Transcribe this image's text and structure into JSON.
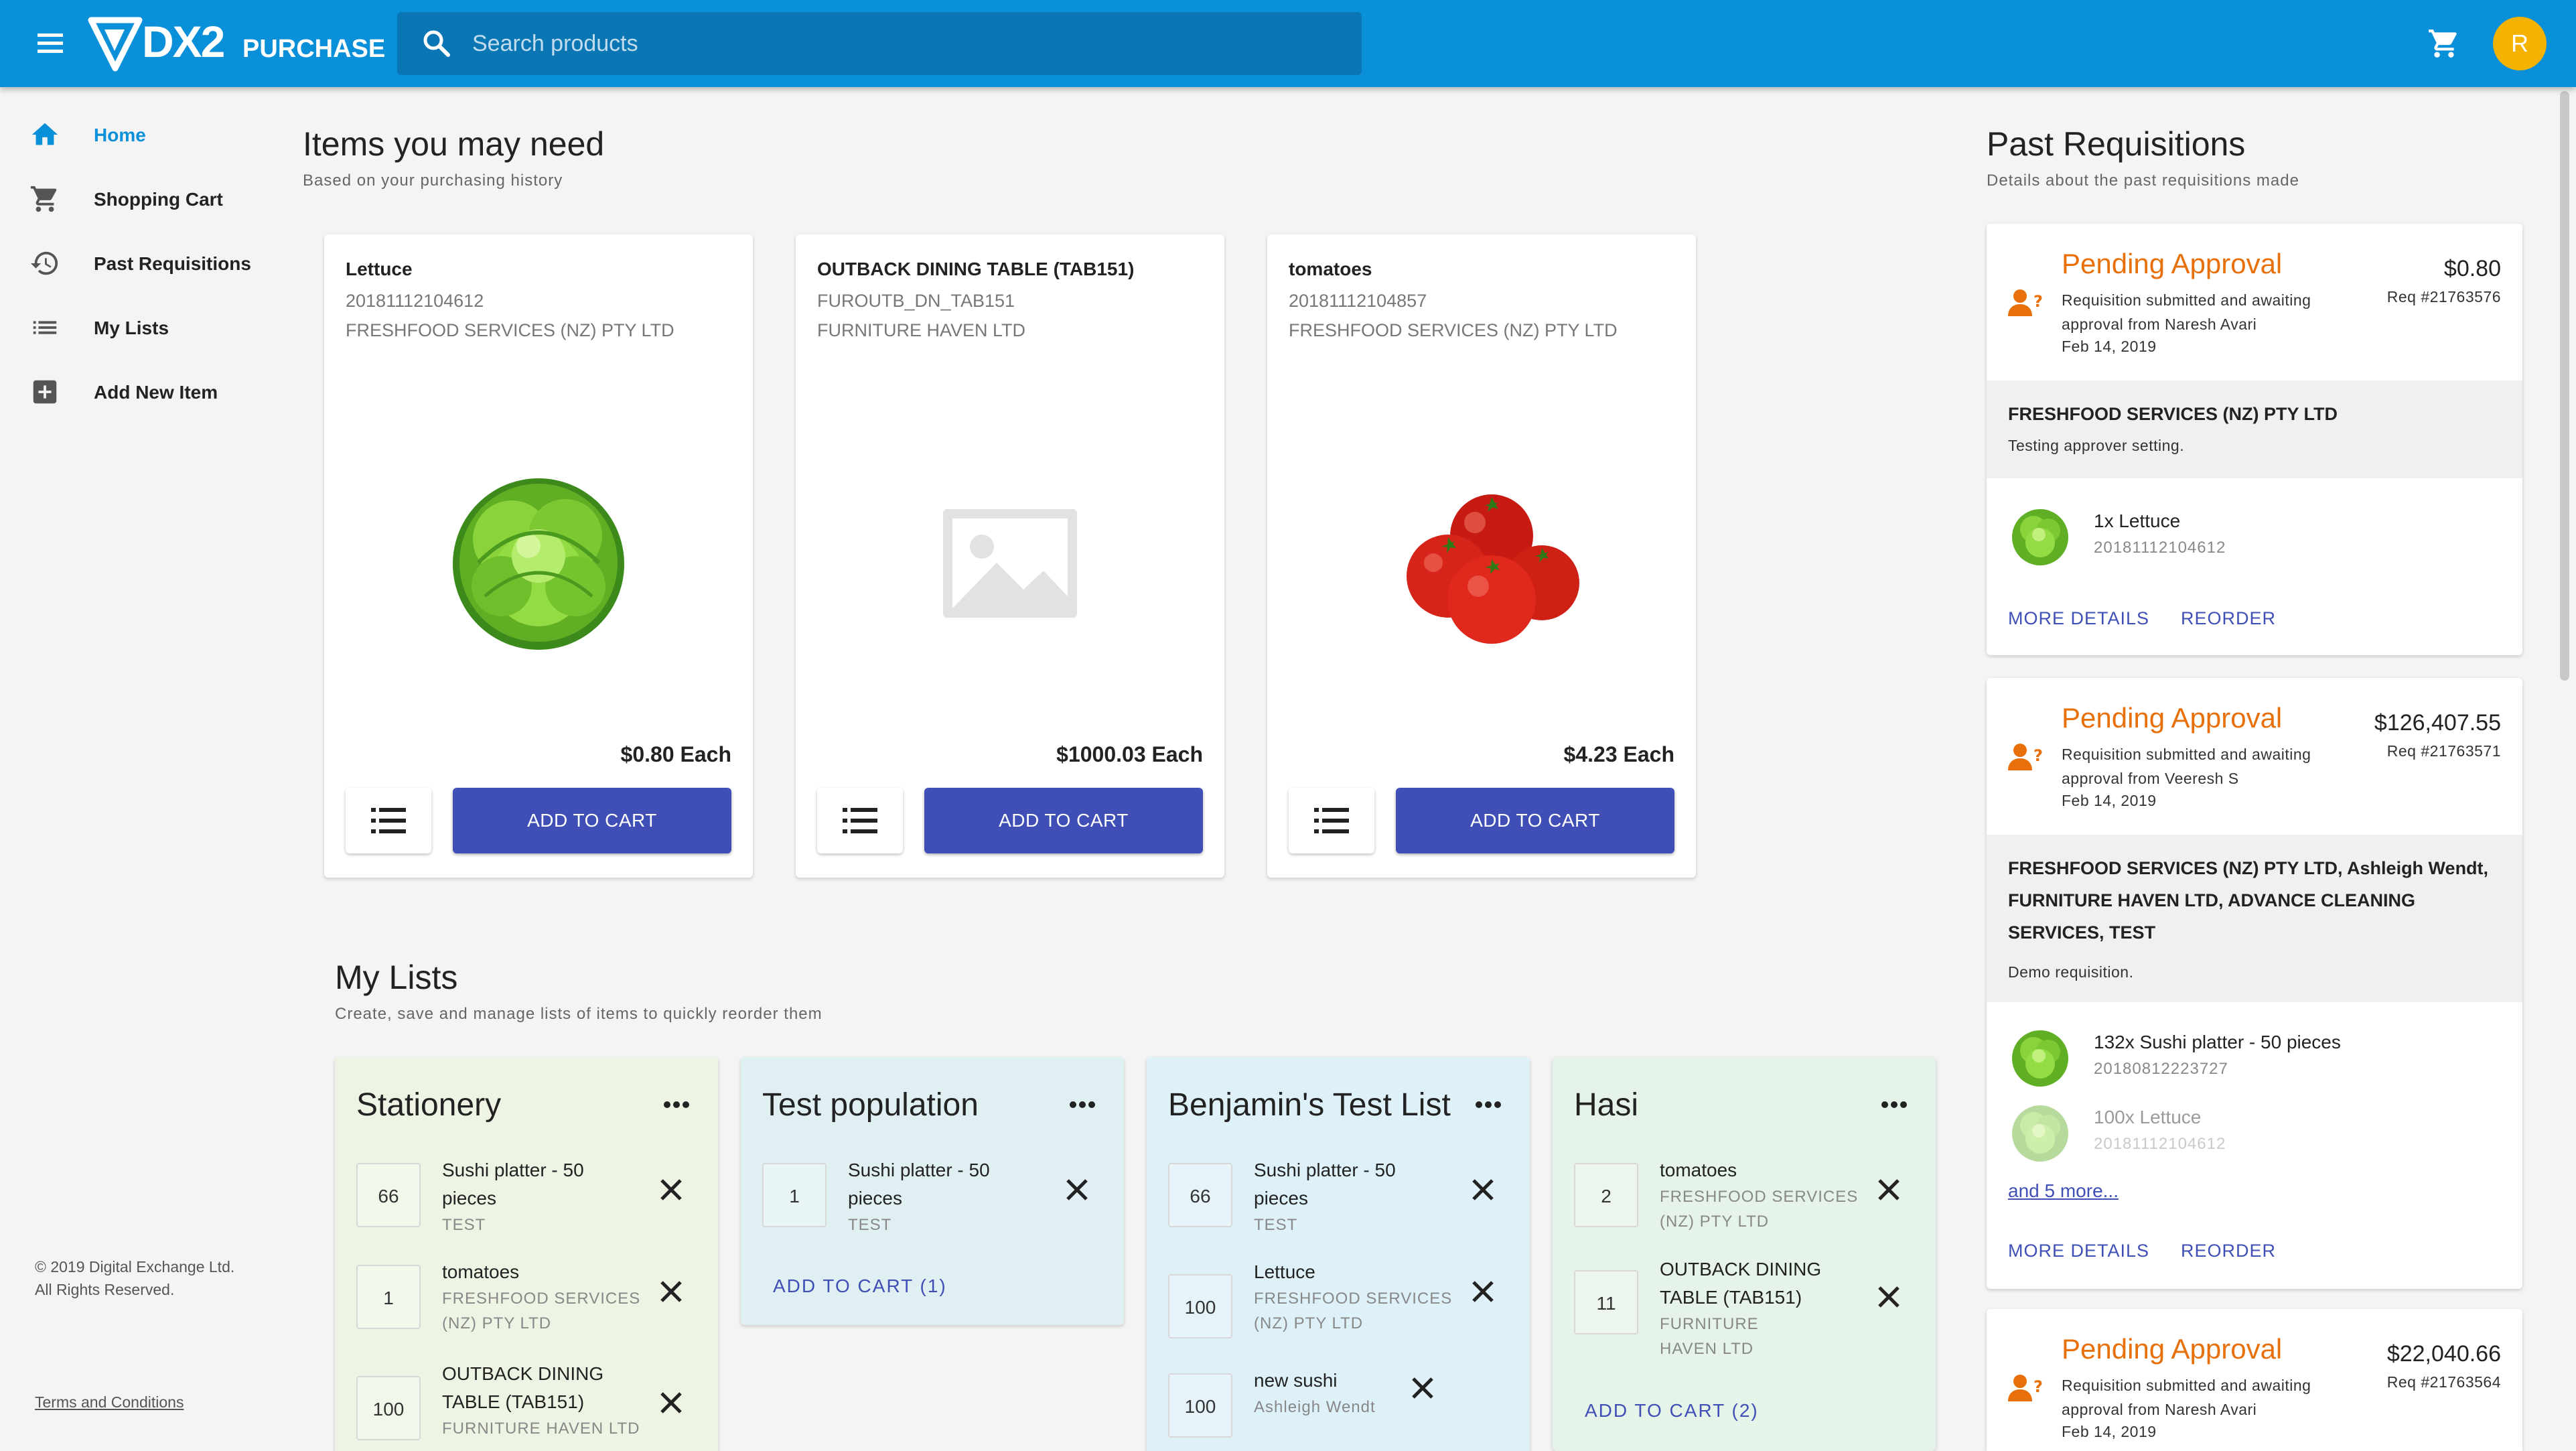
{
  "header": {
    "brand_logo_text": "DX2",
    "brand_sub": "PURCHASE",
    "search_placeholder": "Search products",
    "avatar_initial": "R"
  },
  "sidebar": {
    "items": [
      {
        "label": "Home",
        "icon": "home-icon"
      },
      {
        "label": "Shopping Cart",
        "icon": "cart-icon"
      },
      {
        "label": "Past Requisitions",
        "icon": "history-icon"
      },
      {
        "label": "My Lists",
        "icon": "list-icon"
      },
      {
        "label": "Add New Item",
        "icon": "add-box-icon"
      }
    ],
    "active_index": 0,
    "copyright_line1": "© 2019 Digital Exchange Ltd.",
    "copyright_line2": "All Rights Reserved.",
    "terms": "Terms and Conditions"
  },
  "items_section": {
    "title": "Items you may need",
    "subtitle": "Based on your purchasing history",
    "products": [
      {
        "name": "Lettuce",
        "code": "20181112104612",
        "supplier": "FRESHFOOD SERVICES (NZ) PTY LTD",
        "price": "$0.80 Each",
        "image": "lettuce",
        "cta": "ADD TO CART"
      },
      {
        "name": "OUTBACK DINING TABLE (TAB151)",
        "code": "FUROUTB_DN_TAB151",
        "supplier": "FURNITURE HAVEN LTD",
        "price": "$1000.03 Each",
        "image": "placeholder",
        "cta": "ADD TO CART"
      },
      {
        "name": "tomatoes",
        "code": "20181112104857",
        "supplier": "FRESHFOOD SERVICES (NZ) PTY LTD",
        "price": "$4.23 Each",
        "image": "tomatoes",
        "cta": "ADD TO CART"
      }
    ]
  },
  "lists_section": {
    "title": "My Lists",
    "subtitle": "Create, save and manage lists of items to quickly reorder them",
    "lists": [
      {
        "title": "Stationery",
        "color": "#eef4e4",
        "items": [
          {
            "qty": "66",
            "name": "Sushi platter - 50 pieces",
            "sub": "TEST"
          },
          {
            "qty": "1",
            "name": "tomatoes",
            "sub": "FRESHFOOD SERVICES (NZ) PTY LTD"
          },
          {
            "qty": "100",
            "name": "OUTBACK DINING TABLE (TAB151)",
            "sub": "FURNITURE HAVEN LTD"
          }
        ]
      },
      {
        "title": "Test population",
        "color": "#e0f0f2",
        "items": [
          {
            "qty": "1",
            "name": "Sushi platter - 50 pieces",
            "sub": "TEST"
          }
        ],
        "cta": "ADD TO CART (1)"
      },
      {
        "title": "Benjamin's Test List",
        "color": "#def1f8",
        "items": [
          {
            "qty": "66",
            "name": "Sushi platter - 50 pieces",
            "sub": "TEST"
          },
          {
            "qty": "100",
            "name": "Lettuce",
            "sub": "FRESHFOOD SERVICES (NZ) PTY LTD"
          },
          {
            "qty": "100",
            "name": "new sushi",
            "sub": "Ashleigh Wendt"
          }
        ]
      },
      {
        "title": "Hasi",
        "color": "#e6f3e8",
        "items": [
          {
            "qty": "2",
            "name": "tomatoes",
            "sub": "FRESHFOOD SERVICES (NZ) PTY LTD"
          },
          {
            "qty": "11",
            "name": "OUTBACK DINING TABLE (TAB151)",
            "sub": "FURNITURE HAVEN LTD"
          }
        ],
        "cta": "ADD TO CART (2)"
      }
    ]
  },
  "requisitions_section": {
    "title": "Past Requisitions",
    "subtitle": "Details about the past requisitions made",
    "status_color": "#e8700b",
    "requisitions": [
      {
        "status": "Pending Approval",
        "desc": "Requisition submitted and awaiting approval from Naresh Avari",
        "date": "Feb 14, 2019",
        "amount": "$0.80",
        "req_no": "Req #21763576",
        "suppliers": "FRESHFOOD SERVICES (NZ) PTY LTD",
        "note": "Testing approver setting.",
        "lines": [
          {
            "name": "1x Lettuce",
            "code": "20181112104612"
          }
        ],
        "more_details": "MORE DETAILS",
        "reorder": "REORDER"
      },
      {
        "status": "Pending Approval",
        "desc": "Requisition submitted and awaiting approval from Veeresh S",
        "date": "Feb 14, 2019",
        "amount": "$126,407.55",
        "req_no": "Req #21763571",
        "suppliers": "FRESHFOOD SERVICES (NZ) PTY LTD, Ashleigh Wendt, FURNITURE HAVEN LTD, ADVANCE CLEANING SERVICES, TEST",
        "note": "Demo requisition.",
        "lines": [
          {
            "name": "132x Sushi platter - 50 pieces",
            "code": "20180812223727"
          },
          {
            "name": "100x Lettuce",
            "code": "20181112104612"
          }
        ],
        "more_link": "and 5 more...",
        "more_details": "MORE DETAILS",
        "reorder": "REORDER"
      },
      {
        "status": "Pending Approval",
        "desc": "Requisition submitted and awaiting approval from Naresh Avari",
        "date": "Feb 14, 2019",
        "amount": "$22,040.66",
        "req_no": "Req #21763564"
      }
    ]
  }
}
